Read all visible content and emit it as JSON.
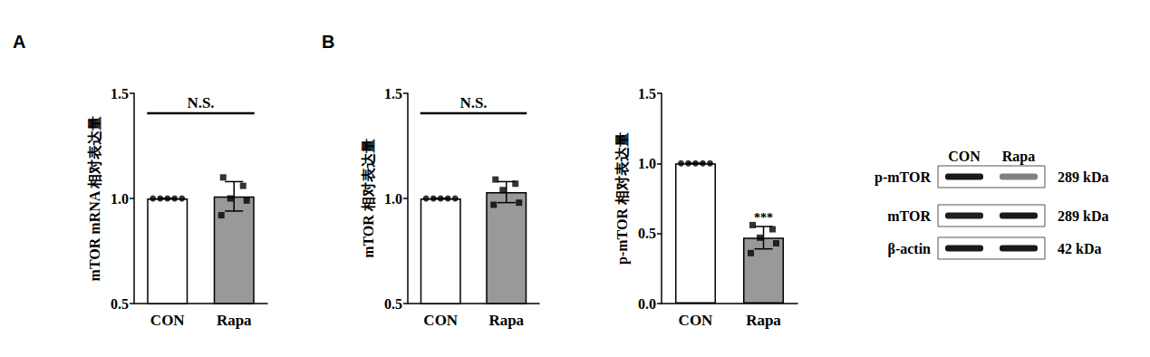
{
  "chart_data": [
    {
      "panel": "A",
      "type": "bar",
      "ylabel": "mTOR mRNA 相对表达量",
      "categories": [
        "CON",
        "Rapa"
      ],
      "values": [
        1.0,
        1.01
      ],
      "errors": [
        0,
        0.07
      ],
      "points": [
        [
          1.0,
          1.0,
          1.0,
          1.0,
          1.0
        ],
        [
          1.1,
          1.06,
          1.0,
          0.99,
          0.92
        ]
      ],
      "colors": [
        "#ffffff",
        "#999999"
      ],
      "ylim": [
        0.5,
        1.5
      ],
      "yticks": [
        0.5,
        {
          "value": 1,
          "label": "1.0"
        },
        1.5
      ],
      "significance": "N.S."
    },
    {
      "panel": "B",
      "type": "bar",
      "ylabel": "mTOR 相对表达量",
      "categories": [
        "CON",
        "Rapa"
      ],
      "values": [
        1.0,
        1.03
      ],
      "errors": [
        0,
        0.05
      ],
      "points": [
        [
          1.0,
          1.0,
          1.0,
          1.0,
          1.0
        ],
        [
          1.09,
          1.07,
          1.04,
          0.98,
          0.97
        ]
      ],
      "colors": [
        "#ffffff",
        "#999999"
      ],
      "ylim": [
        0.5,
        1.5
      ],
      "yticks": [
        0.5,
        {
          "value": 1,
          "label": "1.0"
        },
        1.5
      ],
      "significance": "N.S."
    },
    {
      "type": "bar",
      "ylabel": "p-mTOR 相对表达量",
      "categories": [
        "CON",
        "Rapa"
      ],
      "values": [
        1.0,
        0.47
      ],
      "errors": [
        0,
        0.08
      ],
      "points": [
        [
          1.0,
          1.0,
          1.0,
          1.0,
          1.0
        ],
        [
          0.56,
          0.53,
          0.47,
          0.43,
          0.36
        ]
      ],
      "colors": [
        "#ffffff",
        "#999999"
      ],
      "ylim": [
        0,
        1.5
      ],
      "yticks": [
        {
          "value": 0,
          "label": "0.0"
        },
        0.5,
        {
          "value": 1,
          "label": "1.0"
        },
        1.5
      ],
      "significance": [
        null,
        "***"
      ]
    }
  ],
  "blot": {
    "columns": [
      "CON",
      "Rapa"
    ],
    "rows": [
      {
        "label": "p-mTOR",
        "size": "289 kDa",
        "intensity": [
          1.0,
          0.47
        ]
      },
      {
        "label": "mTOR",
        "size": "289 kDa",
        "intensity": [
          1.0,
          1.03
        ]
      },
      {
        "label": "β-actin",
        "size": "42 kDa",
        "intensity": [
          1.0,
          1.0
        ]
      }
    ]
  }
}
